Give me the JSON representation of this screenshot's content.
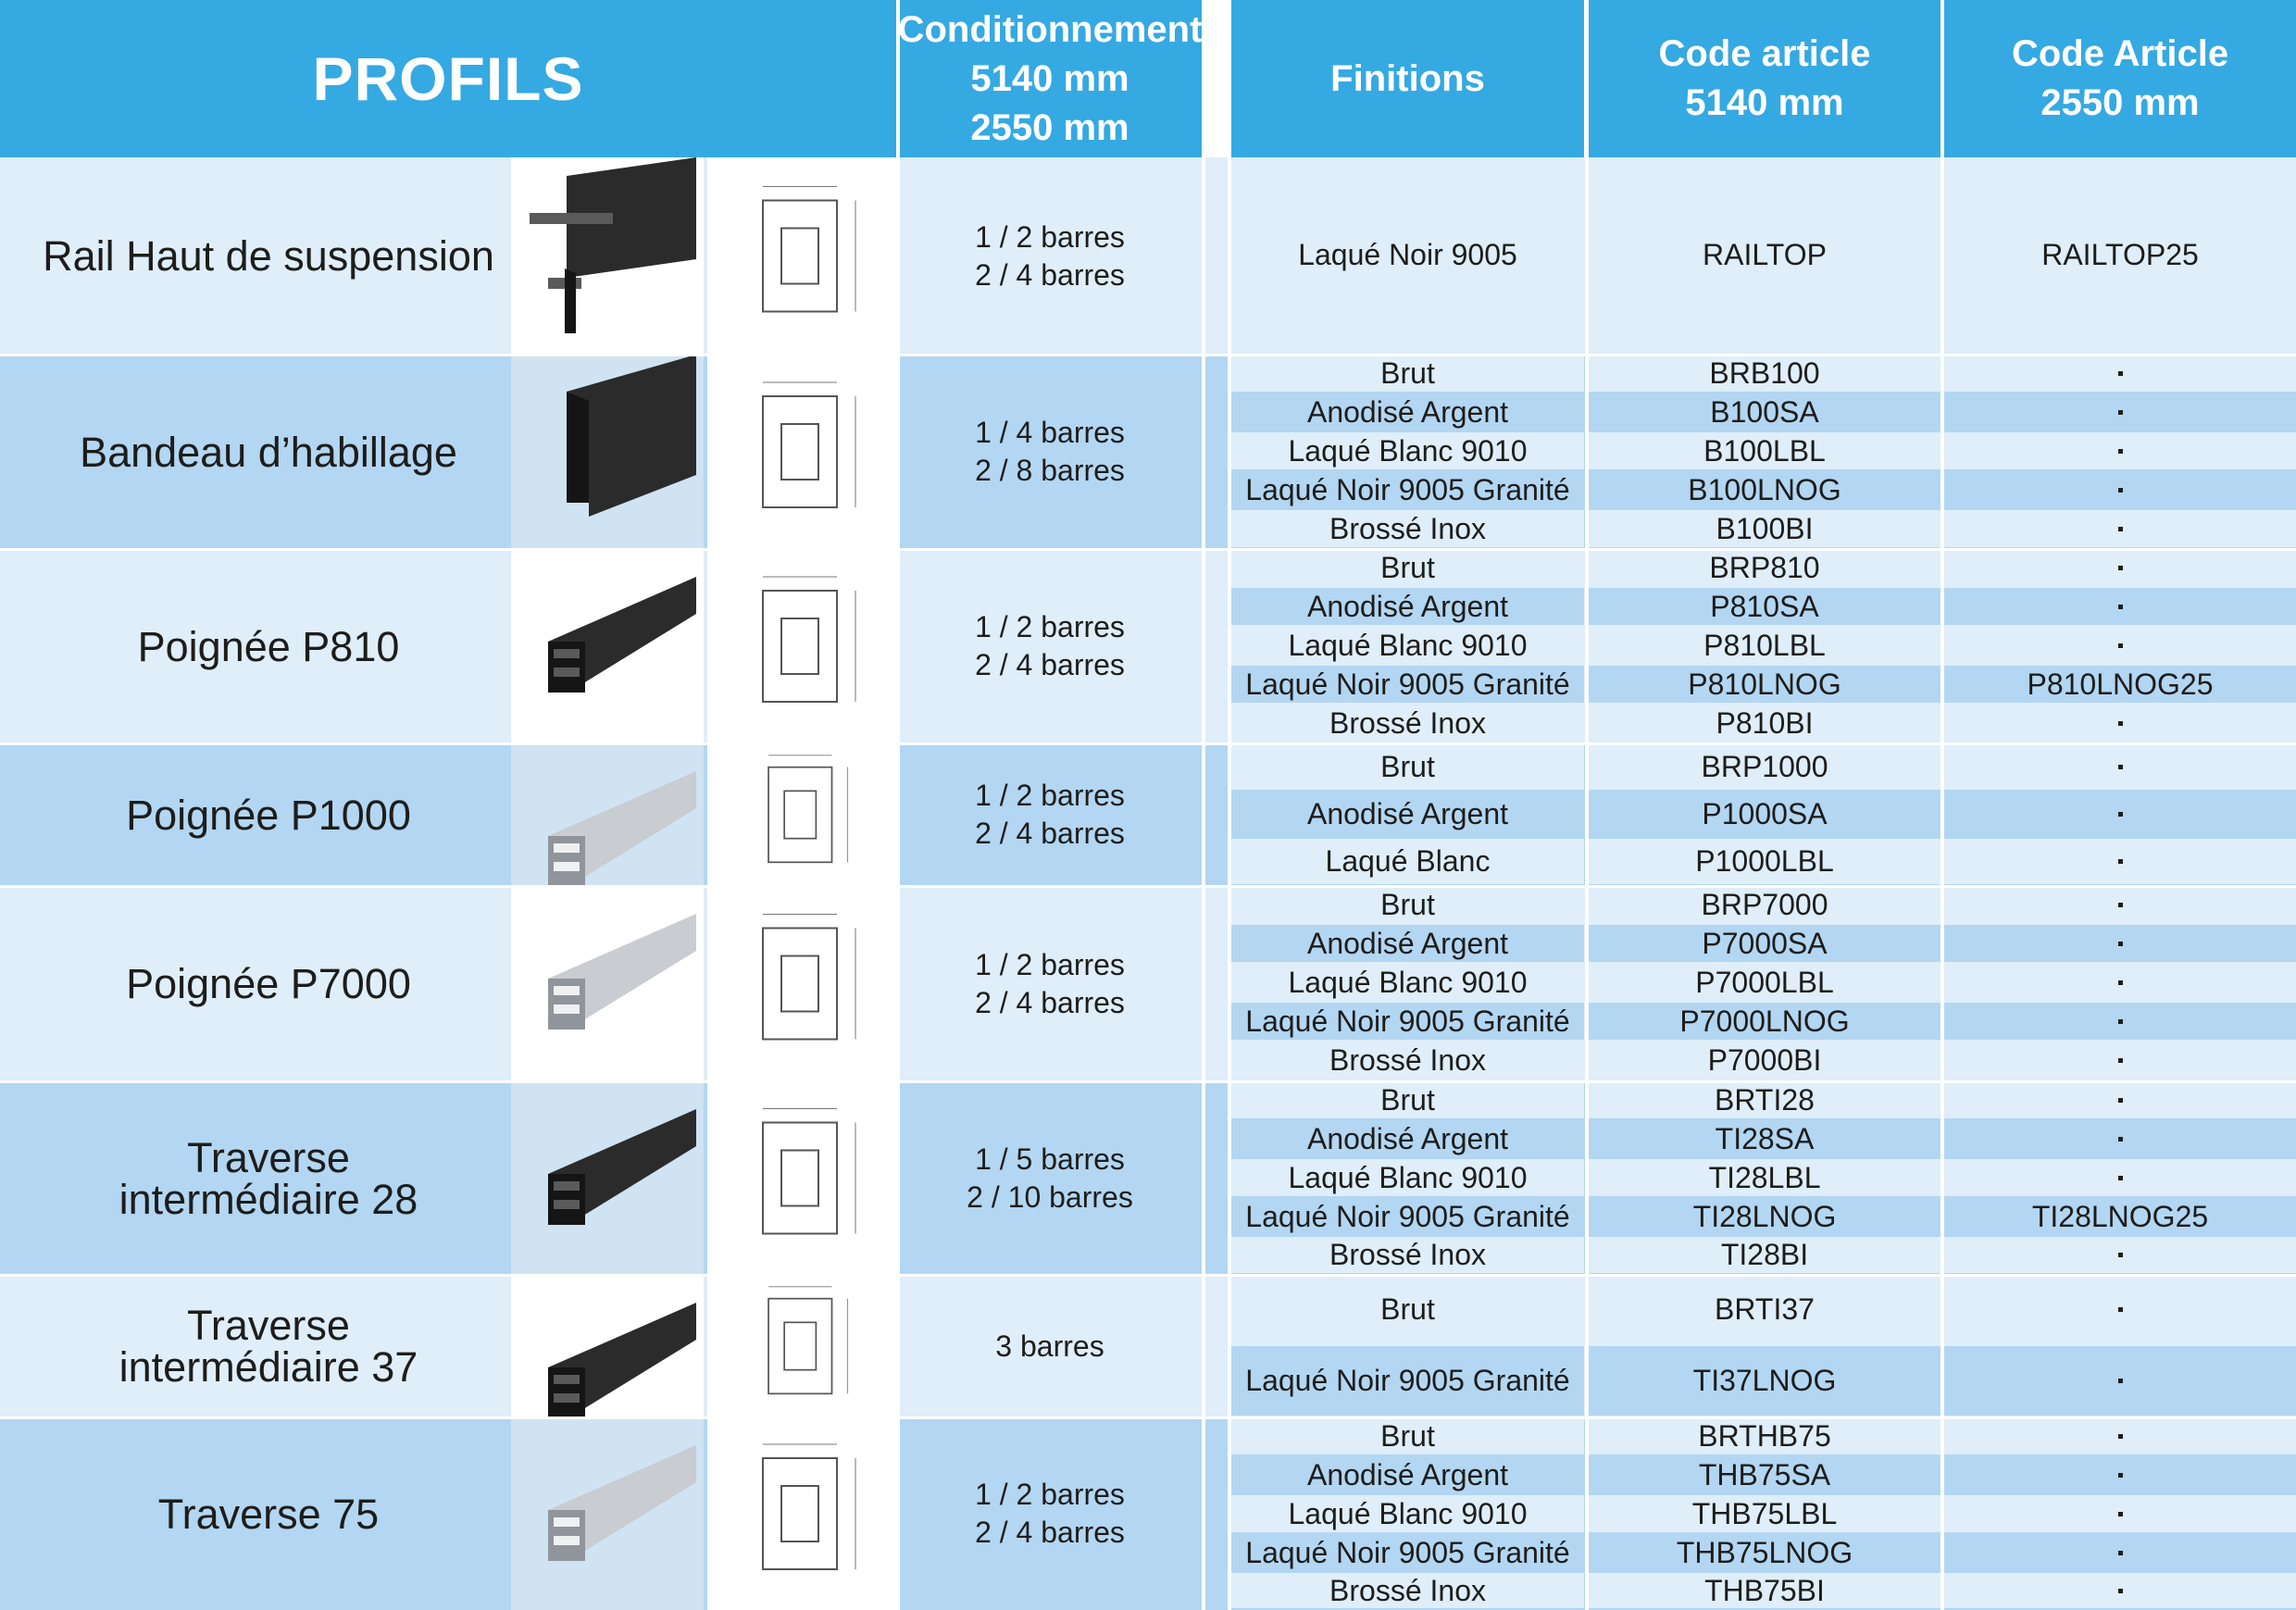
{
  "header": {
    "profils": "PROFILS",
    "conditionnement": [
      "Conditionnement",
      "5140 mm",
      "2550 mm"
    ],
    "finitions": "Finitions",
    "code_5140": [
      "Code article",
      "5140 mm"
    ],
    "code_2550": [
      "Code Article",
      "2550 mm"
    ]
  },
  "colors": {
    "header": "#35a9e2",
    "light_row": "#dfeef9",
    "dark_row": "#b3d6f2",
    "profile_black": "#2b2b2b",
    "profile_alu": "#c9ccd0"
  },
  "rows": [
    {
      "name": [
        "Rail Haut de suspension"
      ],
      "pack": [
        "1 / 2 barres",
        "2 / 4 barres"
      ],
      "photo_icon": "rail-profile-photo",
      "drawing_icon": "rail-technical-drawing",
      "finishes": [
        {
          "finish": "Laqué Noir 9005",
          "code_5140": "RAILTOP",
          "code_2550": "RAILTOP25"
        }
      ]
    },
    {
      "name": [
        "Bandeau d’habillage"
      ],
      "pack": [
        "1 / 4 barres",
        "2 / 8 barres"
      ],
      "photo_icon": "bandeau-profile-photo",
      "drawing_icon": "bandeau-technical-drawing",
      "finishes": [
        {
          "finish": "Brut",
          "code_5140": "BRB100",
          "code_2550": ""
        },
        {
          "finish": "Anodisé Argent",
          "code_5140": "B100SA",
          "code_2550": ""
        },
        {
          "finish": "Laqué Blanc 9010",
          "code_5140": "B100LBL",
          "code_2550": ""
        },
        {
          "finish": "Laqué Noir 9005 Granité",
          "code_5140": "B100LNOG",
          "code_2550": ""
        },
        {
          "finish": "Brossé Inox",
          "code_5140": "B100BI",
          "code_2550": ""
        }
      ]
    },
    {
      "name": [
        "Poignée P810"
      ],
      "pack": [
        "1 / 2 barres",
        "2 / 4 barres"
      ],
      "photo_icon": "p810-profile-photo",
      "drawing_icon": "p810-technical-drawing",
      "finishes": [
        {
          "finish": "Brut",
          "code_5140": "BRP810",
          "code_2550": ""
        },
        {
          "finish": "Anodisé Argent",
          "code_5140": "P810SA",
          "code_2550": ""
        },
        {
          "finish": "Laqué Blanc 9010",
          "code_5140": "P810LBL",
          "code_2550": ""
        },
        {
          "finish": "Laqué Noir 9005 Granité",
          "code_5140": "P810LNOG",
          "code_2550": "P810LNOG25"
        },
        {
          "finish": "Brossé Inox",
          "code_5140": "P810BI",
          "code_2550": ""
        }
      ]
    },
    {
      "name": [
        "Poignée P1000"
      ],
      "pack": [
        "1 / 2 barres",
        "2 / 4 barres"
      ],
      "photo_icon": "p1000-profile-photo",
      "drawing_icon": "p1000-technical-drawing",
      "finishes": [
        {
          "finish": "Brut",
          "code_5140": "BRP1000",
          "code_2550": ""
        },
        {
          "finish": "Anodisé Argent",
          "code_5140": "P1000SA",
          "code_2550": ""
        },
        {
          "finish": "Laqué Blanc",
          "code_5140": "P1000LBL",
          "code_2550": ""
        }
      ]
    },
    {
      "name": [
        "Poignée P7000"
      ],
      "pack": [
        "1 / 2 barres",
        "2 / 4 barres"
      ],
      "photo_icon": "p7000-profile-photo",
      "drawing_icon": "p7000-technical-drawing",
      "finishes": [
        {
          "finish": "Brut",
          "code_5140": "BRP7000",
          "code_2550": ""
        },
        {
          "finish": "Anodisé Argent",
          "code_5140": "P7000SA",
          "code_2550": ""
        },
        {
          "finish": "Laqué Blanc 9010",
          "code_5140": "P7000LBL",
          "code_2550": ""
        },
        {
          "finish": "Laqué Noir 9005 Granité",
          "code_5140": "P7000LNOG",
          "code_2550": ""
        },
        {
          "finish": "Brossé Inox",
          "code_5140": "P7000BI",
          "code_2550": ""
        }
      ]
    },
    {
      "name": [
        "Traverse",
        "intermédiaire 28"
      ],
      "pack": [
        "1 / 5 barres",
        "2 / 10 barres"
      ],
      "photo_icon": "ti28-profile-photo",
      "drawing_icon": "ti28-technical-drawing",
      "finishes": [
        {
          "finish": "Brut",
          "code_5140": "BRTI28",
          "code_2550": ""
        },
        {
          "finish": "Anodisé Argent",
          "code_5140": "TI28SA",
          "code_2550": ""
        },
        {
          "finish": "Laqué Blanc 9010",
          "code_5140": "TI28LBL",
          "code_2550": ""
        },
        {
          "finish": "Laqué Noir 9005 Granité",
          "code_5140": "TI28LNOG",
          "code_2550": "TI28LNOG25"
        },
        {
          "finish": "Brossé Inox",
          "code_5140": "TI28BI",
          "code_2550": ""
        }
      ]
    },
    {
      "name": [
        "Traverse",
        "intermédiaire 37"
      ],
      "pack": [
        "3 barres"
      ],
      "photo_icon": "ti37-profile-photo",
      "drawing_icon": "ti37-technical-drawing",
      "finishes": [
        {
          "finish": "Brut",
          "code_5140": "BRTI37",
          "code_2550": ""
        },
        {
          "finish": "Laqué Noir 9005 Granité",
          "code_5140": "TI37LNOG",
          "code_2550": ""
        }
      ]
    },
    {
      "name": [
        "Traverse 75"
      ],
      "pack": [
        "1 / 2 barres",
        "2 / 4 barres"
      ],
      "photo_icon": "thb75-profile-photo",
      "drawing_icon": "thb75-technical-drawing",
      "finishes": [
        {
          "finish": "Brut",
          "code_5140": "BRTHB75",
          "code_2550": ""
        },
        {
          "finish": "Anodisé Argent",
          "code_5140": "THB75SA",
          "code_2550": ""
        },
        {
          "finish": "Laqué Blanc 9010",
          "code_5140": "THB75LBL",
          "code_2550": ""
        },
        {
          "finish": "Laqué Noir 9005 Granité",
          "code_5140": "THB75LNOG",
          "code_2550": ""
        },
        {
          "finish": "Brossé Inox",
          "code_5140": "THB75BI",
          "code_2550": ""
        }
      ]
    }
  ]
}
